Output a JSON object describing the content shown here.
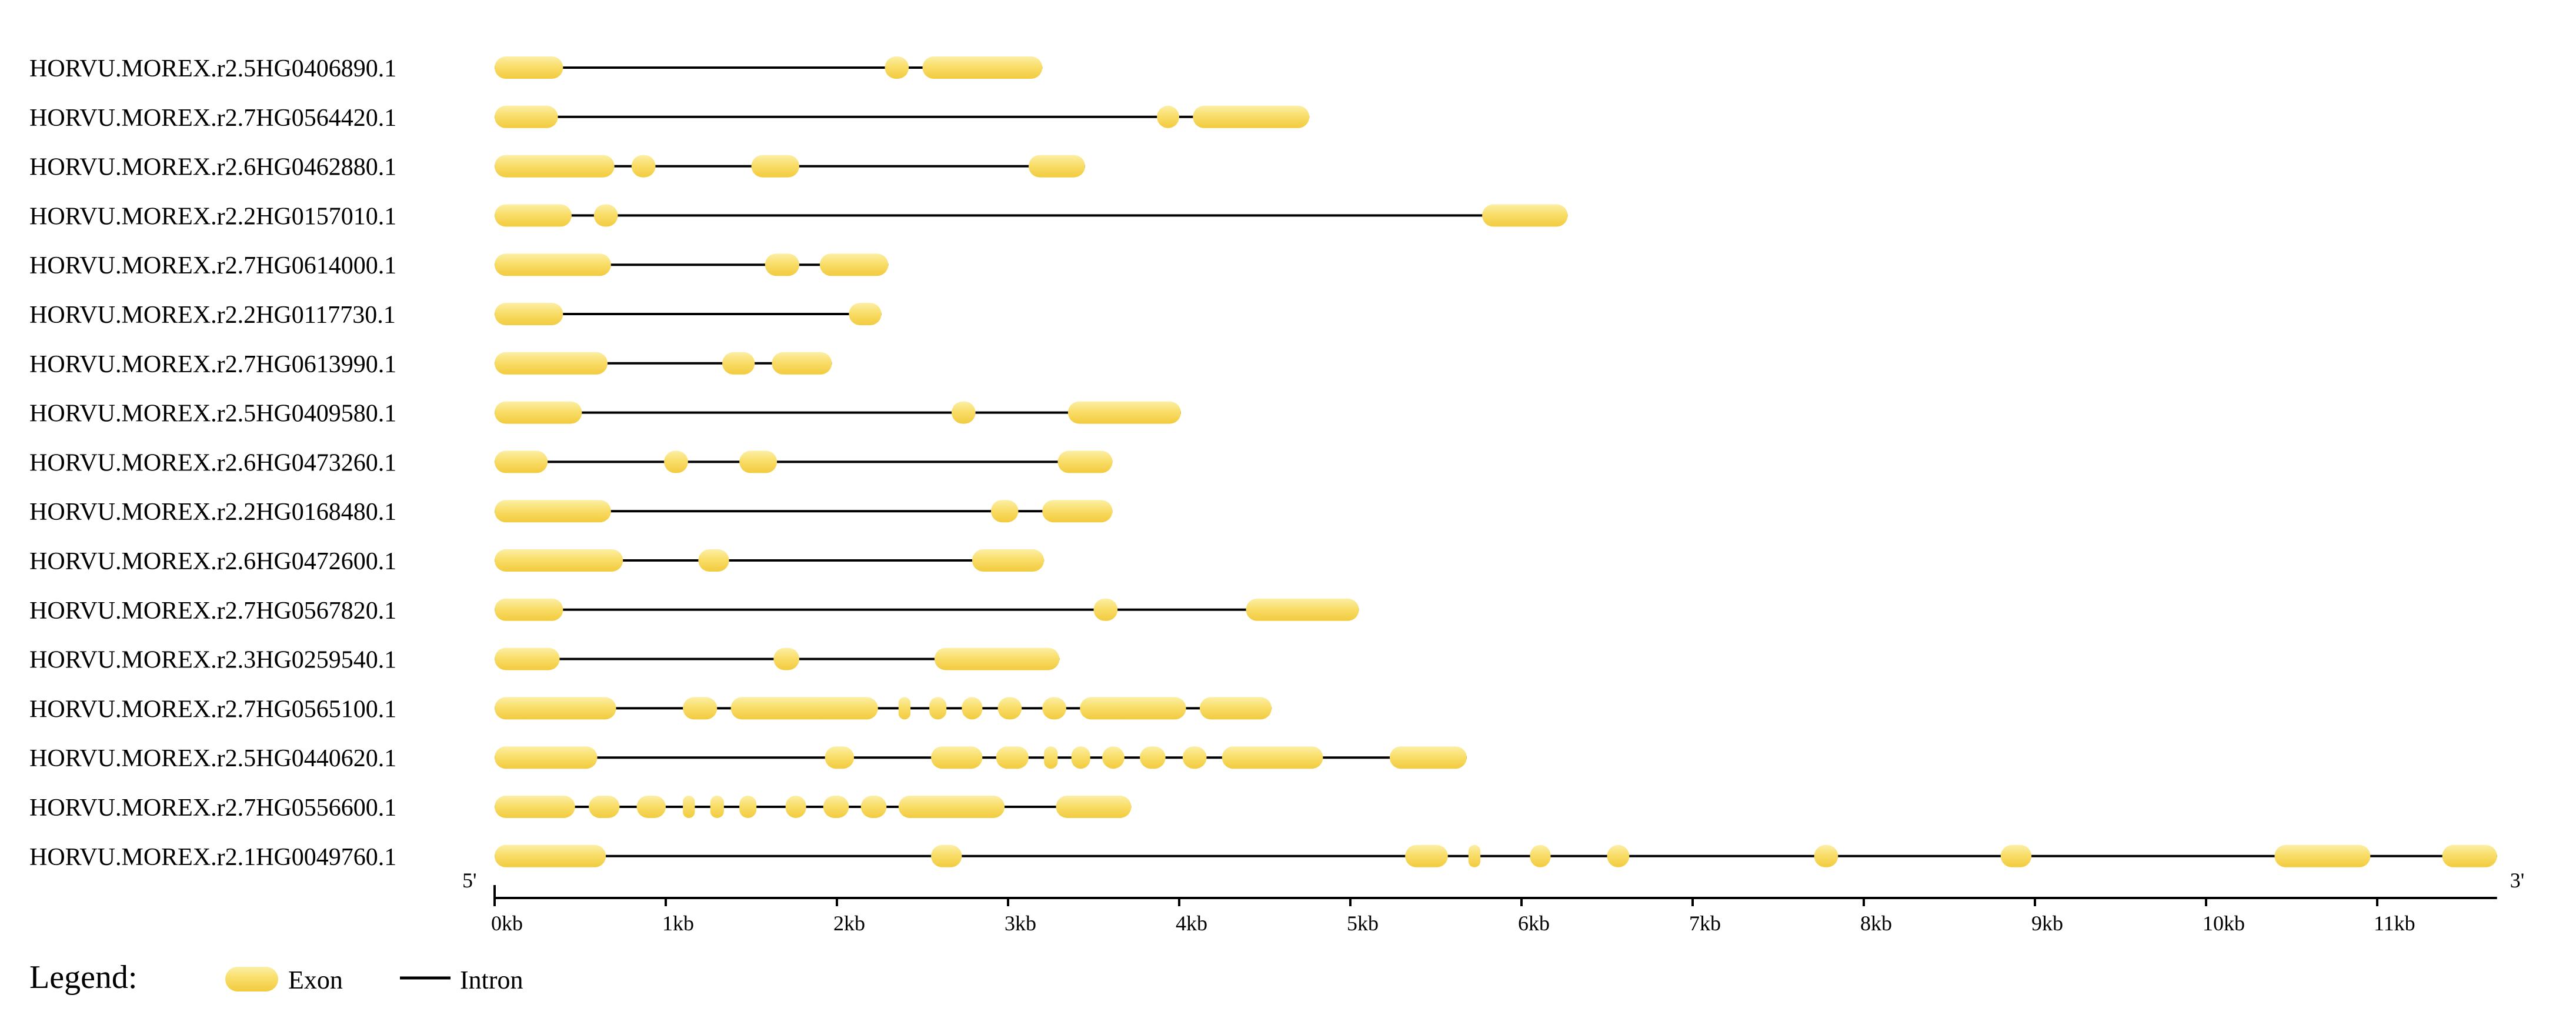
{
  "diagram": {
    "type": "gene-structure",
    "axis": {
      "ticks": [
        "0kb",
        "1kb",
        "2kb",
        "3kb",
        "4kb",
        "5kb",
        "6kb",
        "7kb",
        "8kb",
        "9kb",
        "10kb",
        "11kb"
      ],
      "max_kb": 11.7,
      "left_end": "5'",
      "right_end": "3'"
    },
    "legend": {
      "title": "Legend:",
      "exon_label": "Exon",
      "intron_label": "Intron"
    },
    "colors": {
      "exon": "#F7D85A",
      "exon_light": "#FCEFA6",
      "intron": "#000000"
    },
    "genes": [
      {
        "id": "HORVU.MOREX.r2.5HG0406890.1",
        "length": 3.2,
        "exons": [
          [
            0,
            0.4
          ],
          [
            2.28,
            2.42
          ],
          [
            2.5,
            3.2
          ]
        ]
      },
      {
        "id": "HORVU.MOREX.r2.7HG0564420.1",
        "length": 4.76,
        "exons": [
          [
            0,
            0.37
          ],
          [
            3.87,
            4.0
          ],
          [
            4.08,
            4.76
          ]
        ]
      },
      {
        "id": "HORVU.MOREX.r2.6HG0462880.1",
        "length": 3.45,
        "exons": [
          [
            0,
            0.7
          ],
          [
            0.8,
            0.94
          ],
          [
            1.5,
            1.78
          ],
          [
            3.12,
            3.45
          ]
        ]
      },
      {
        "id": "HORVU.MOREX.r2.2HG0157010.1",
        "length": 6.27,
        "exons": [
          [
            0,
            0.45
          ],
          [
            0.58,
            0.72
          ],
          [
            5.77,
            6.27
          ]
        ]
      },
      {
        "id": "HORVU.MOREX.r2.7HG0614000.1",
        "length": 2.3,
        "exons": [
          [
            0,
            0.68
          ],
          [
            1.58,
            1.78
          ],
          [
            1.9,
            2.3
          ]
        ]
      },
      {
        "id": "HORVU.MOREX.r2.2HG0117730.1",
        "length": 2.26,
        "exons": [
          [
            0,
            0.4
          ],
          [
            2.07,
            2.26
          ]
        ]
      },
      {
        "id": "HORVU.MOREX.r2.7HG0613990.1",
        "length": 1.97,
        "exons": [
          [
            0,
            0.66
          ],
          [
            1.33,
            1.52
          ],
          [
            1.62,
            1.97
          ]
        ]
      },
      {
        "id": "HORVU.MOREX.r2.5HG0409580.1",
        "length": 4.01,
        "exons": [
          [
            0,
            0.51
          ],
          [
            2.67,
            2.81
          ],
          [
            3.35,
            4.01
          ]
        ]
      },
      {
        "id": "HORVU.MOREX.r2.6HG0473260.1",
        "length": 3.61,
        "exons": [
          [
            0,
            0.31
          ],
          [
            0.99,
            1.13
          ],
          [
            1.43,
            1.65
          ],
          [
            3.29,
            3.61
          ]
        ]
      },
      {
        "id": "HORVU.MOREX.r2.2HG0168480.1",
        "length": 3.61,
        "exons": [
          [
            0,
            0.68
          ],
          [
            2.9,
            3.06
          ],
          [
            3.2,
            3.61
          ]
        ]
      },
      {
        "id": "HORVU.MOREX.r2.6HG0472600.1",
        "length": 3.21,
        "exons": [
          [
            0,
            0.75
          ],
          [
            1.19,
            1.37
          ],
          [
            2.79,
            3.21
          ]
        ]
      },
      {
        "id": "HORVU.MOREX.r2.7HG0567820.1",
        "length": 5.05,
        "exons": [
          [
            0,
            0.4
          ],
          [
            3.5,
            3.64
          ],
          [
            4.39,
            5.05
          ]
        ]
      },
      {
        "id": "HORVU.MOREX.r2.3HG0259540.1",
        "length": 3.3,
        "exons": [
          [
            0,
            0.38
          ],
          [
            1.63,
            1.78
          ],
          [
            2.57,
            3.3
          ]
        ]
      },
      {
        "id": "HORVU.MOREX.r2.7HG0565100.1",
        "length": 4.54,
        "exons": [
          [
            0,
            0.71
          ],
          [
            1.1,
            1.3
          ],
          [
            1.38,
            2.24
          ],
          [
            2.36,
            2.43
          ],
          [
            2.54,
            2.64
          ],
          [
            2.73,
            2.85
          ],
          [
            2.94,
            3.08
          ],
          [
            3.2,
            3.34
          ],
          [
            3.42,
            4.04
          ],
          [
            4.12,
            4.54
          ]
        ]
      },
      {
        "id": "HORVU.MOREX.r2.5HG0440620.1",
        "length": 5.68,
        "exons": [
          [
            0,
            0.6
          ],
          [
            1.93,
            2.1
          ],
          [
            2.55,
            2.85
          ],
          [
            2.93,
            3.12
          ],
          [
            3.21,
            3.29
          ],
          [
            3.37,
            3.48
          ],
          [
            3.55,
            3.68
          ],
          [
            3.77,
            3.92
          ],
          [
            4.02,
            4.16
          ],
          [
            4.25,
            4.84
          ],
          [
            5.23,
            5.68
          ]
        ]
      },
      {
        "id": "HORVU.MOREX.r2.7HG0556600.1",
        "length": 3.72,
        "exons": [
          [
            0,
            0.47
          ],
          [
            0.55,
            0.73
          ],
          [
            0.83,
            1.0
          ],
          [
            1.1,
            1.17
          ],
          [
            1.26,
            1.34
          ],
          [
            1.43,
            1.53
          ],
          [
            1.7,
            1.82
          ],
          [
            1.92,
            2.07
          ],
          [
            2.14,
            2.29
          ],
          [
            2.36,
            2.98
          ],
          [
            3.28,
            3.72
          ]
        ]
      },
      {
        "id": "HORVU.MOREX.r2.1HG0049760.1",
        "length": 11.7,
        "exons": [
          [
            0,
            0.65
          ],
          [
            2.55,
            2.73
          ],
          [
            5.32,
            5.57
          ],
          [
            5.69,
            5.76
          ],
          [
            6.05,
            6.17
          ],
          [
            6.5,
            6.63
          ],
          [
            7.71,
            7.85
          ],
          [
            8.8,
            8.98
          ],
          [
            10.4,
            10.96
          ],
          [
            11.38,
            11.7
          ]
        ]
      }
    ]
  }
}
